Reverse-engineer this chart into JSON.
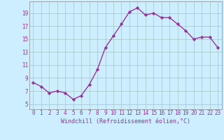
{
  "x": [
    0,
    1,
    2,
    3,
    4,
    5,
    6,
    7,
    8,
    9,
    10,
    11,
    12,
    13,
    14,
    15,
    16,
    17,
    18,
    19,
    20,
    21,
    22,
    23
  ],
  "y": [
    8.3,
    7.7,
    6.7,
    7.0,
    6.7,
    5.7,
    6.3,
    8.0,
    10.3,
    13.7,
    15.5,
    17.3,
    19.2,
    19.8,
    18.7,
    19.0,
    18.3,
    18.3,
    17.3,
    16.3,
    15.0,
    15.3,
    15.3,
    13.7
  ],
  "line_color": "#993399",
  "marker": "D",
  "marker_size": 2.2,
  "line_width": 1.0,
  "bg_color": "#cceeff",
  "grid_color": "#aacccc",
  "xlabel": "Windchill (Refroidissement éolien,°C)",
  "xlabel_color": "#993399",
  "tick_color": "#993399",
  "yticks": [
    5,
    7,
    9,
    11,
    13,
    15,
    17,
    19
  ],
  "ylim": [
    4.2,
    20.8
  ],
  "xlim": [
    -0.5,
    23.5
  ],
  "tick_fontsize": 5.5,
  "xlabel_fontsize": 6.0
}
